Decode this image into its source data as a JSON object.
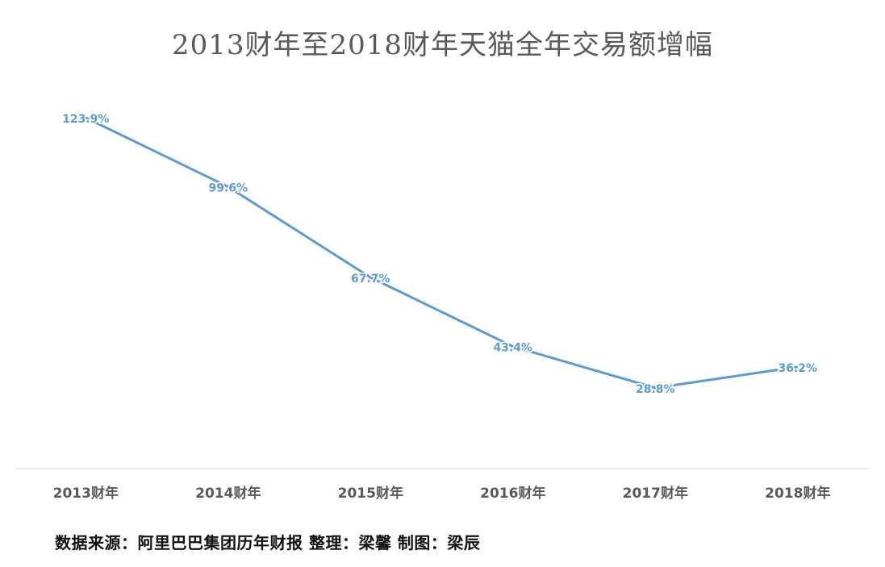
{
  "chart_data": {
    "type": "line",
    "title": "2013财年至2018财年天猫全年交易额增幅",
    "categories": [
      "2013财年",
      "2014财年",
      "2015财年",
      "2016财年",
      "2017财年",
      "2018财年"
    ],
    "series": [
      {
        "values": [
          123.9,
          99.6,
          67.7,
          43.4,
          28.8,
          36.2
        ],
        "labels": [
          "123.9%",
          "99.6%",
          "67.7%",
          "43.4%",
          "28.8%",
          "36.2%"
        ],
        "color": "#5b9bd5"
      }
    ],
    "xlabel": "",
    "ylabel": "",
    "ylim": [
      0,
      140
    ],
    "grid": false,
    "legend": "none"
  },
  "footer": {
    "source_note": "数据来源：阿里巴巴集团历年财报 整理：梁馨 制图：梁辰"
  },
  "colors": {
    "line": "#5b9bd5",
    "title": "#5a5a5a",
    "axis": "#d9d9d9",
    "tick_label": "#595959"
  }
}
